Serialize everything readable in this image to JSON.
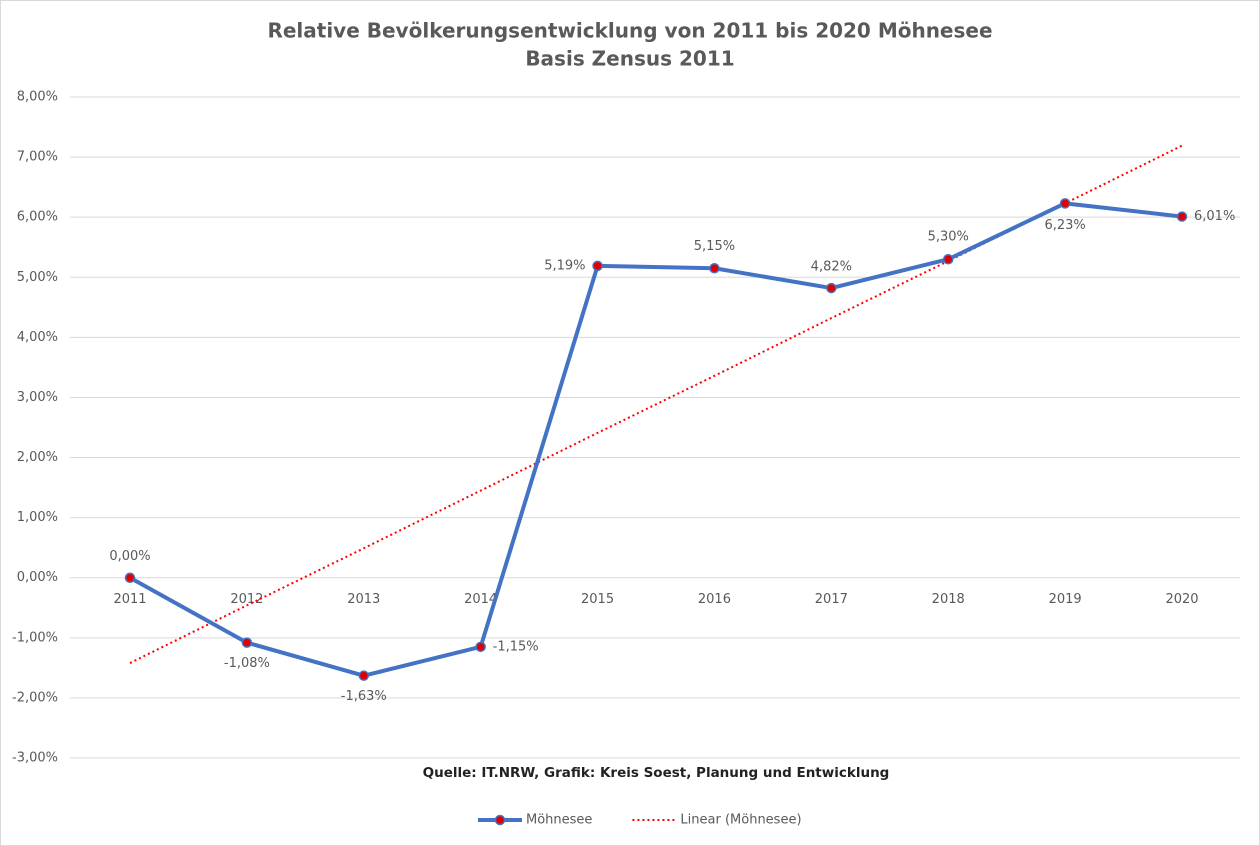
{
  "chart_data": {
    "type": "line",
    "title": "Relative Bevölkerungsentwicklung von 2011 bis 2020 Möhnesee",
    "subtitle": "Basis Zensus 2011",
    "source": "Quelle: IT.NRW, Grafik: Kreis Soest, Planung und Entwicklung",
    "categories": [
      "2011",
      "2012",
      "2013",
      "2014",
      "2015",
      "2016",
      "2017",
      "2018",
      "2019",
      "2020"
    ],
    "series": [
      {
        "name": "Möhnesee",
        "color": "#4472c4",
        "marker_color": "#e00000",
        "line_style": "solid",
        "values": [
          0,
          -1.08,
          -1.63,
          -1.15,
          5.19,
          5.15,
          4.82,
          5.3,
          6.23,
          6.01
        ],
        "value_labels": [
          "0,00%",
          "-1,08%",
          "-1,63%",
          "-1,15%",
          "5,19%",
          "5,15%",
          "4,82%",
          "5,30%",
          "6,23%",
          "6,01%"
        ]
      },
      {
        "name": "Linear (Möhnesee)",
        "color": "#ff0000",
        "line_style": "dotted",
        "values": [
          -1.42,
          -0.46,
          0.49,
          1.45,
          2.41,
          3.36,
          4.32,
          5.27,
          6.23,
          7.19
        ]
      }
    ],
    "ylim": [
      -3,
      8
    ],
    "yticks": [
      {
        "value": -3,
        "label": "-3,00%"
      },
      {
        "value": -2,
        "label": "-2,00%"
      },
      {
        "value": -1,
        "label": "-1,00%"
      },
      {
        "value": 0,
        "label": "0,00%"
      },
      {
        "value": 1,
        "label": "1,00%"
      },
      {
        "value": 2,
        "label": "2,00%"
      },
      {
        "value": 3,
        "label": "3,00%"
      },
      {
        "value": 4,
        "label": "4,00%"
      },
      {
        "value": 5,
        "label": "5,00%"
      },
      {
        "value": 6,
        "label": "6,00%"
      },
      {
        "value": 7,
        "label": "7,00%"
      },
      {
        "value": 8,
        "label": "8,00%"
      }
    ],
    "grid": true,
    "legend": "bottom"
  }
}
